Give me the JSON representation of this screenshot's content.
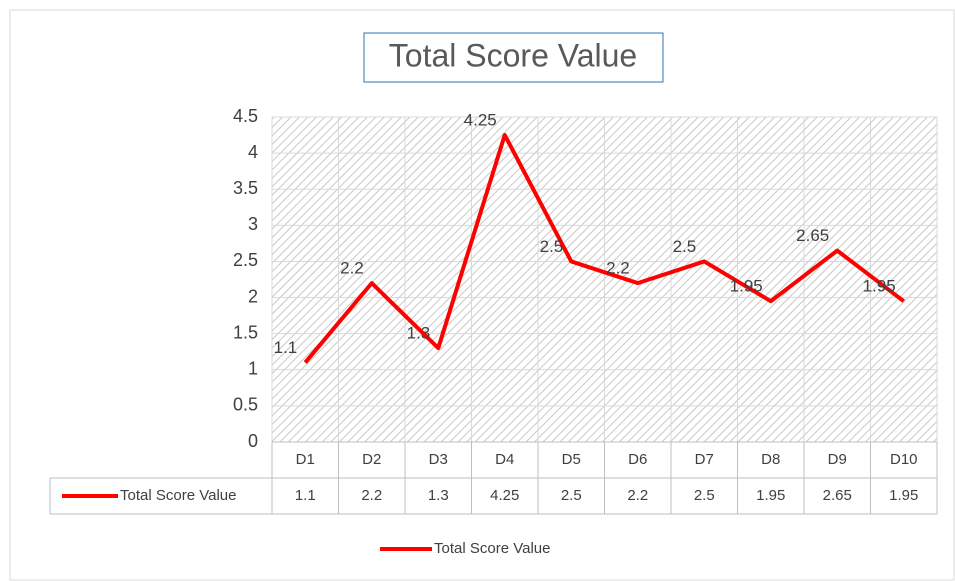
{
  "chart_data": {
    "type": "line",
    "title": "Total Score Value",
    "categories": [
      "D1",
      "D2",
      "D3",
      "D4",
      "D5",
      "D6",
      "D7",
      "D8",
      "D9",
      "D10"
    ],
    "series": [
      {
        "name": "Total Score Value",
        "color": "#ff0000",
        "values": [
          1.1,
          2.2,
          1.3,
          4.25,
          2.5,
          2.2,
          2.5,
          1.95,
          2.65,
          1.95
        ]
      }
    ],
    "ylim": [
      0,
      4.5
    ],
    "yticks": [
      0,
      0.5,
      1,
      1.5,
      2,
      2.5,
      3,
      3.5,
      4,
      4.5
    ],
    "grid": true,
    "legend": "bottom",
    "data_table": true
  }
}
